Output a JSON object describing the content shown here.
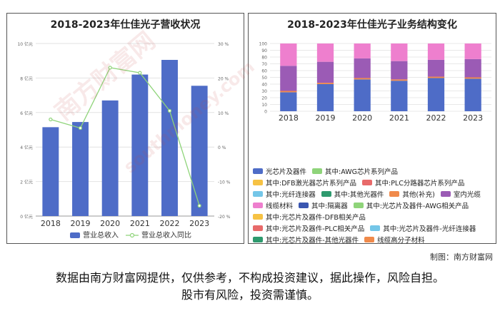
{
  "left_chart": {
    "title": "2018-2023年仕佳光子营收状况",
    "chart_data": {
      "type": "bar",
      "categories": [
        "2018",
        "2019",
        "2020",
        "2021",
        "2022",
        "2023"
      ],
      "series": [
        {
          "name": "营业总收入",
          "type": "bar",
          "axis": "left",
          "values": [
            5.15,
            5.45,
            6.7,
            8.2,
            9.05,
            7.55
          ],
          "color": "#4e6cc7"
        },
        {
          "name": "营业总收入同比",
          "type": "line",
          "axis": "right",
          "values": [
            8.0,
            5.5,
            23.0,
            21.5,
            10.5,
            -17.0
          ],
          "color": "#8fd47a"
        }
      ],
      "y_left": {
        "ylim": [
          0,
          10
        ],
        "ticks": [
          "0 亿元",
          "2 亿元",
          "4 亿元",
          "6 亿元",
          "8 亿元",
          "10 亿元"
        ]
      },
      "y_right": {
        "ylim": [
          -20,
          30
        ],
        "ticks": [
          "-20 %",
          "-10 %",
          "0 %",
          "10 %",
          "20 %",
          "30 %"
        ]
      },
      "grid": true,
      "legend_position": "bottom"
    }
  },
  "right_chart": {
    "title": "2018-2023年仕佳光子业务结构变化",
    "chart_data": {
      "type": "bar",
      "stacked": true,
      "categories": [
        "2018",
        "2019",
        "2020",
        "2021",
        "2022",
        "2023"
      ],
      "ylim": [
        0,
        100
      ],
      "yticks": [
        "0",
        "10",
        "20",
        "30",
        "40",
        "50",
        "60",
        "70",
        "80",
        "90",
        "100"
      ],
      "series": [
        {
          "name": "光芯片及器件",
          "color": "#4e6cc7",
          "values": [
            28,
            40,
            47,
            45,
            49,
            48
          ]
        },
        {
          "name": "其中:AWG芯片系列产品",
          "color": "#8fd47a",
          "values": [
            0,
            0,
            0,
            0,
            0,
            0
          ]
        },
        {
          "name": "其中:DFB激光器芯片系列产品",
          "color": "#f6c244",
          "values": [
            0,
            0,
            0,
            0,
            0,
            0
          ]
        },
        {
          "name": "其中:PLC分路器芯片系列产品",
          "color": "#e86a6a",
          "values": [
            0,
            0,
            0,
            0,
            0,
            0
          ]
        },
        {
          "name": "其中:光纤连接器",
          "color": "#74c6e8",
          "values": [
            0,
            0,
            0,
            0,
            0,
            0
          ]
        },
        {
          "name": "其中:其他光器件",
          "color": "#2e9a6e",
          "values": [
            0,
            0,
            0,
            0,
            0,
            0
          ]
        },
        {
          "name": "其他(补充)",
          "color": "#f08a4b",
          "values": [
            2,
            2,
            2,
            2,
            2,
            2
          ]
        },
        {
          "name": "室内光缆",
          "color": "#9b5bb5",
          "values": [
            37,
            31,
            29,
            27,
            25,
            27
          ]
        },
        {
          "name": "线缆材料",
          "color": "#ee7fce",
          "values": [
            33,
            27,
            22,
            26,
            24,
            23
          ]
        },
        {
          "name": "其中:隔离器",
          "color": "#3a56b0",
          "values": [
            0,
            0,
            0,
            0,
            0,
            0
          ]
        },
        {
          "name": "其中:光芯片及器件-AWG相关产品",
          "color": "#8fd47a",
          "values": [
            0,
            0,
            0,
            0,
            0,
            0
          ]
        },
        {
          "name": "其中:光芯片及器件-DFB相关产品",
          "color": "#f6c244",
          "values": [
            0,
            0,
            0,
            0,
            0,
            0
          ]
        },
        {
          "name": "其中:光芯片及器件-PLC相关产品",
          "color": "#e86a6a",
          "values": [
            0,
            0,
            0,
            0,
            0,
            0
          ]
        },
        {
          "name": "其中:光芯片及器件-光纤连接器",
          "color": "#74c6e8",
          "values": [
            0,
            0,
            0,
            0,
            0,
            0
          ]
        },
        {
          "name": "其中:光芯片及器件-其他光器件",
          "color": "#2e9a6e",
          "values": [
            0,
            0,
            0,
            0,
            0,
            0
          ]
        },
        {
          "name": "线缆高分子材料",
          "color": "#f08a4b",
          "values": [
            0,
            0,
            0,
            0,
            0,
            0
          ]
        }
      ],
      "legend_position": "bottom",
      "grid": true
    }
  },
  "credit": "制图：南方财富网",
  "disclaimer": {
    "line1": "数据由南方财富网提供，仅供参考，不构成投资建议，据此操作，风险自担。",
    "line2": "股市有风险，投资需谨慎。"
  },
  "watermark": {
    "cn": "南方财富网",
    "en": "southmoney.com"
  }
}
